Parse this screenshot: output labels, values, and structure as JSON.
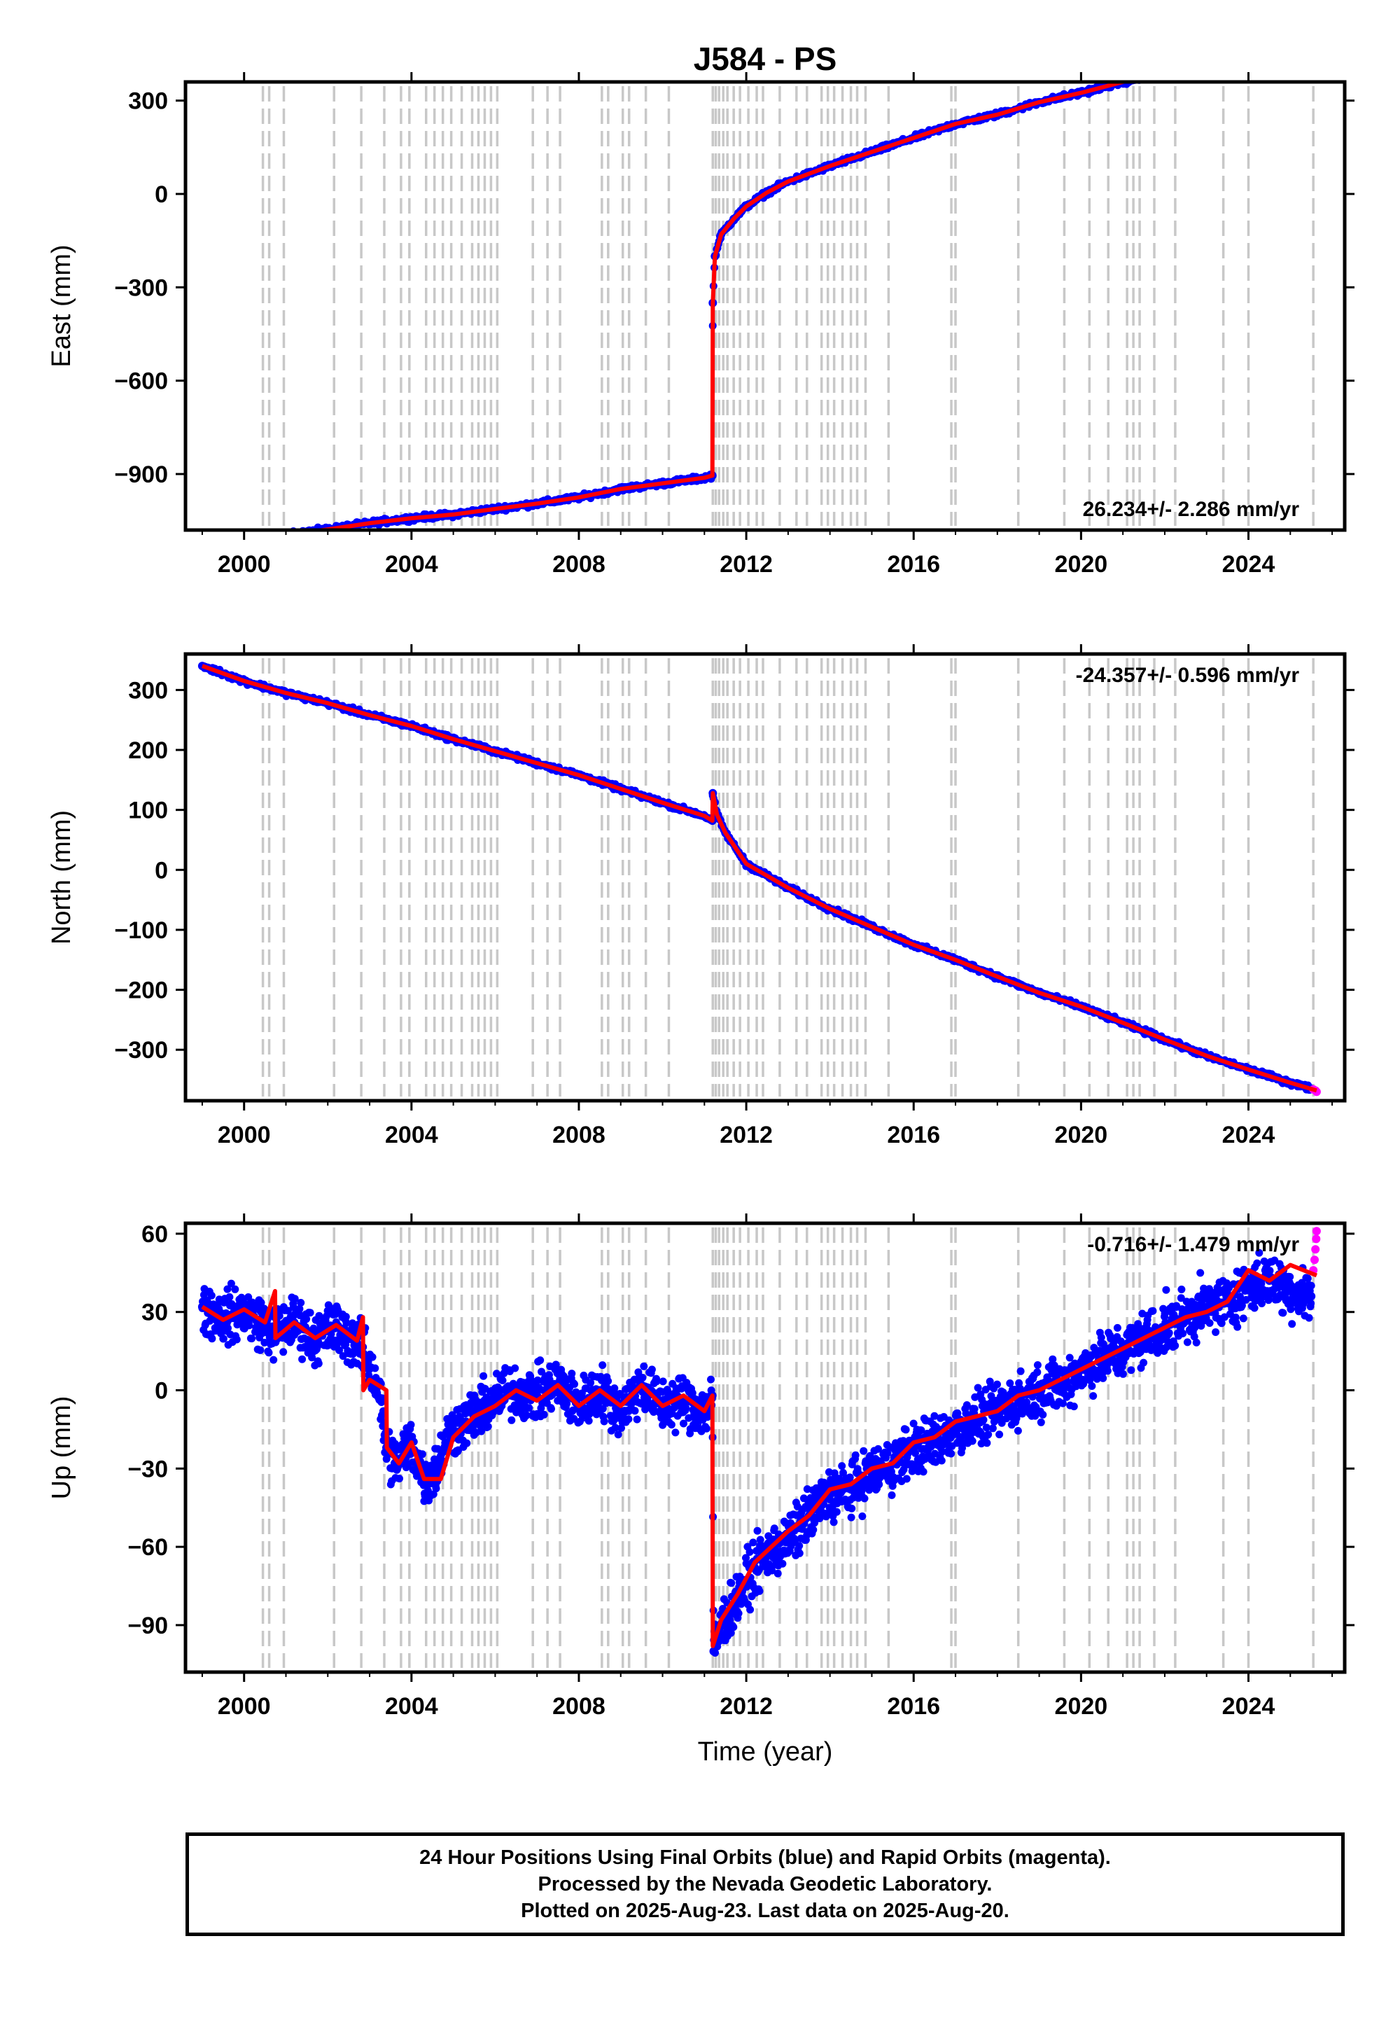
{
  "title": "J584 - PS",
  "xlabel": "Time (year)",
  "footer": {
    "line1": "24 Hour Positions Using Final Orbits (blue) and Rapid Orbits (magenta).",
    "line2": "Processed by the Nevada Geodetic Laboratory.",
    "line3": "Plotted on 2025-Aug-23. Last data on 2025-Aug-20."
  },
  "colors": {
    "final": "#0000ff",
    "rapid": "#ff00ff",
    "model": "#ff0000",
    "event_lines": "#c8c8c8"
  },
  "chart_data": [
    {
      "type": "scatter",
      "ylabel": "East (mm)",
      "rate": "26.234+/- 2.286 mm/yr",
      "rate_position": "bottom-right",
      "xlim": [
        1998.6,
        2026.3
      ],
      "ylim": [
        -1080,
        360
      ],
      "xticks": [
        2000,
        2004,
        2008,
        2012,
        2016,
        2020,
        2024
      ],
      "yticks": [
        300,
        0,
        -300,
        -600,
        -900
      ],
      "xticklabels": [
        "2000",
        "2004",
        "2008",
        "2012",
        "2016",
        "2020",
        "2024"
      ],
      "yticklabels": [
        "300",
        "0",
        "−300",
        "−600",
        "−900"
      ],
      "series": [
        {
          "kind": "final",
          "x": [
            1999.0,
            2000.0,
            2001.0,
            2002.0,
            2003.0,
            2004.0,
            2005.0,
            2006.0,
            2007.0,
            2008.0,
            2009.0,
            2010.0,
            2011.0,
            2011.19,
            2011.2,
            2011.25,
            2011.4,
            2011.7,
            2012.0,
            2012.5,
            2013.0,
            2014.0,
            2015.0,
            2016.0,
            2017.0,
            2018.0,
            2019.0,
            2020.0,
            2021.0,
            2022.0,
            2023.0,
            2024.0,
            2025.0,
            2025.5
          ],
          "y": [
            -1125,
            -1112,
            -1095,
            -1078,
            -1058,
            -1042,
            -1030,
            -1012,
            -995,
            -975,
            -948,
            -930,
            -912,
            -905,
            -350,
            -200,
            -130,
            -80,
            -40,
            5,
            40,
            90,
            135,
            180,
            225,
            255,
            295,
            325,
            360,
            390,
            415,
            445,
            470,
            485
          ]
        },
        {
          "kind": "rapid",
          "x": [
            2025.55,
            2025.6,
            2025.63
          ],
          "y": [
            486,
            490,
            493
          ]
        },
        {
          "kind": "model",
          "x": [
            1999.0,
            2000.0,
            2001.0,
            2002.0,
            2003.0,
            2004.0,
            2005.0,
            2006.0,
            2007.0,
            2008.0,
            2009.0,
            2010.0,
            2011.0,
            2011.19,
            2011.2,
            2011.25,
            2011.4,
            2011.7,
            2012.0,
            2012.5,
            2013.0,
            2014.0,
            2015.0,
            2016.0,
            2017.0,
            2018.0,
            2019.0,
            2020.0,
            2021.0,
            2022.0,
            2023.0,
            2024.0,
            2025.0,
            2025.63
          ],
          "y": [
            -1125,
            -1112,
            -1095,
            -1078,
            -1058,
            -1042,
            -1030,
            -1012,
            -995,
            -975,
            -948,
            -930,
            -912,
            -905,
            -350,
            -200,
            -130,
            -80,
            -40,
            5,
            40,
            90,
            135,
            180,
            225,
            255,
            295,
            325,
            360,
            390,
            415,
            445,
            470,
            490
          ]
        }
      ]
    },
    {
      "type": "scatter",
      "ylabel": "North (mm)",
      "rate": "-24.357+/- 0.596 mm/yr",
      "rate_position": "top-right",
      "xlim": [
        1998.6,
        2026.3
      ],
      "ylim": [
        -385,
        360
      ],
      "xticks": [
        2000,
        2004,
        2008,
        2012,
        2016,
        2020,
        2024
      ],
      "yticks": [
        300,
        200,
        100,
        0,
        -100,
        -200,
        -300
      ],
      "xticklabels": [
        "2000",
        "2004",
        "2008",
        "2012",
        "2016",
        "2020",
        "2024"
      ],
      "yticklabels": [
        "300",
        "200",
        "100",
        "0",
        "−100",
        "−200",
        "−300"
      ],
      "series": [
        {
          "kind": "final",
          "x": [
            1999.0,
            2000.0,
            2001.0,
            2002.0,
            2003.0,
            2004.0,
            2005.0,
            2006.0,
            2007.0,
            2008.0,
            2009.0,
            2010.0,
            2011.0,
            2011.19,
            2011.2,
            2011.3,
            2011.5,
            2012.0,
            2013.0,
            2014.0,
            2015.0,
            2016.0,
            2017.0,
            2018.0,
            2019.0,
            2020.0,
            2021.0,
            2022.0,
            2023.0,
            2024.0,
            2025.0,
            2025.5
          ],
          "y": [
            340,
            315,
            295,
            278,
            258,
            240,
            218,
            198,
            178,
            158,
            135,
            112,
            90,
            82,
            128,
            92,
            62,
            10,
            -30,
            -65,
            -95,
            -125,
            -150,
            -178,
            -205,
            -228,
            -255,
            -283,
            -310,
            -333,
            -355,
            -365
          ]
        },
        {
          "kind": "rapid",
          "x": [
            2025.55,
            2025.6,
            2025.63
          ],
          "y": [
            -366,
            -368,
            -370
          ]
        },
        {
          "kind": "model",
          "x": [
            1999.0,
            2000.0,
            2001.0,
            2002.0,
            2003.0,
            2004.0,
            2005.0,
            2006.0,
            2007.0,
            2008.0,
            2009.0,
            2010.0,
            2011.0,
            2011.19,
            2011.2,
            2011.3,
            2011.5,
            2012.0,
            2013.0,
            2014.0,
            2015.0,
            2016.0,
            2017.0,
            2018.0,
            2019.0,
            2020.0,
            2021.0,
            2022.0,
            2023.0,
            2024.0,
            2025.0,
            2025.63
          ],
          "y": [
            340,
            315,
            295,
            278,
            258,
            240,
            218,
            198,
            178,
            158,
            135,
            112,
            90,
            82,
            128,
            92,
            62,
            10,
            -30,
            -65,
            -95,
            -125,
            -150,
            -178,
            -205,
            -228,
            -255,
            -283,
            -310,
            -333,
            -355,
            -368
          ]
        }
      ]
    },
    {
      "type": "scatter",
      "ylabel": "Up (mm)",
      "rate": "-0.716+/- 1.479 mm/yr",
      "rate_position": "top-right",
      "xlim": [
        1998.6,
        2026.3
      ],
      "ylim": [
        -108,
        64
      ],
      "xticks": [
        2000,
        2004,
        2008,
        2012,
        2016,
        2020,
        2024
      ],
      "yticks": [
        60,
        30,
        0,
        -30,
        -60,
        -90
      ],
      "xticklabels": [
        "2000",
        "2004",
        "2008",
        "2012",
        "2016",
        "2020",
        "2024"
      ],
      "yticklabels": [
        "60",
        "30",
        "0",
        "−30",
        "−60",
        "−90"
      ],
      "series": [
        {
          "kind": "final",
          "x": [
            1999.0,
            1999.5,
            2000.0,
            2000.5,
            2000.7,
            2001.2,
            2001.7,
            2002.2,
            2002.7,
            2002.85,
            2003.2,
            2003.4,
            2003.6,
            2004.0,
            2004.3,
            2004.6,
            2004.9,
            2005.3,
            2005.8,
            2006.3,
            2007.0,
            2007.5,
            2008.0,
            2008.5,
            2009.0,
            2009.5,
            2010.0,
            2010.5,
            2011.0,
            2011.19,
            2011.22,
            2011.4,
            2011.8,
            2012.2,
            2012.6,
            2013.0,
            2013.5,
            2014.0,
            2014.5,
            2015.0,
            2015.5,
            2016.0,
            2016.5,
            2017.0,
            2017.5,
            2018.0,
            2018.5,
            2019.0,
            2019.5,
            2020.0,
            2020.5,
            2021.0,
            2021.5,
            2022.0,
            2022.5,
            2023.0,
            2023.5,
            2024.0,
            2024.5,
            2025.0,
            2025.5
          ],
          "y": [
            32,
            28,
            30,
            25,
            22,
            26,
            20,
            24,
            18,
            14,
            2,
            -22,
            -28,
            -20,
            -34,
            -30,
            -16,
            -12,
            -6,
            0,
            -2,
            2,
            -6,
            0,
            -8,
            2,
            -6,
            -4,
            -8,
            -2,
            -100,
            -90,
            -80,
            -68,
            -62,
            -58,
            -48,
            -40,
            -38,
            -32,
            -28,
            -22,
            -20,
            -15,
            -12,
            -8,
            -4,
            0,
            2,
            8,
            12,
            15,
            20,
            24,
            28,
            32,
            34,
            40,
            42,
            38,
            36
          ]
        },
        {
          "kind": "rapid",
          "x": [
            2025.55,
            2025.58,
            2025.6,
            2025.62,
            2025.63
          ],
          "y": [
            46,
            50,
            54,
            58,
            61
          ]
        },
        {
          "kind": "model",
          "x": [
            1999.0,
            1999.5,
            2000.0,
            2000.5,
            2000.74,
            2000.75,
            2001.2,
            2001.7,
            2002.2,
            2002.7,
            2002.84,
            2002.85,
            2003.0,
            2003.4,
            2003.41,
            2003.7,
            2004.0,
            2004.3,
            2004.7,
            2005.0,
            2005.5,
            2006.0,
            2006.5,
            2007.0,
            2007.5,
            2008.0,
            2008.5,
            2009.0,
            2009.5,
            2010.0,
            2010.5,
            2011.0,
            2011.19,
            2011.2,
            2011.4,
            2011.8,
            2012.2,
            2012.6,
            2013.0,
            2013.5,
            2014.0,
            2014.5,
            2015.0,
            2015.5,
            2016.0,
            2016.5,
            2017.0,
            2017.5,
            2018.0,
            2018.5,
            2019.0,
            2019.5,
            2020.0,
            2020.5,
            2021.0,
            2021.5,
            2022.0,
            2022.5,
            2023.0,
            2023.5,
            2024.0,
            2024.5,
            2025.0,
            2025.63
          ],
          "y": [
            32,
            27,
            31,
            26,
            38,
            20,
            26,
            20,
            25,
            19,
            28,
            0,
            4,
            0,
            -22,
            -28,
            -20,
            -34,
            -34,
            -18,
            -10,
            -6,
            0,
            -4,
            2,
            -6,
            0,
            -6,
            2,
            -6,
            -2,
            -8,
            -2,
            -98,
            -88,
            -78,
            -66,
            -60,
            -54,
            -48,
            -38,
            -36,
            -30,
            -28,
            -20,
            -18,
            -12,
            -10,
            -8,
            -2,
            0,
            4,
            8,
            12,
            16,
            20,
            24,
            28,
            30,
            34,
            46,
            42,
            48,
            44
          ]
        }
      ]
    }
  ],
  "event_lines": [
    2000.45,
    2000.6,
    2000.95,
    2002.15,
    2002.8,
    2003.35,
    2003.75,
    2003.95,
    2004.35,
    2004.55,
    2004.75,
    2004.95,
    2005.2,
    2005.45,
    2005.6,
    2005.75,
    2005.9,
    2006.05,
    2006.9,
    2007.25,
    2007.55,
    2008.55,
    2008.7,
    2009.05,
    2009.2,
    2009.6,
    2010.15,
    2011.2,
    2011.27,
    2011.35,
    2011.45,
    2011.55,
    2011.7,
    2011.85,
    2012.05,
    2012.25,
    2012.4,
    2012.8,
    2013.2,
    2013.45,
    2013.8,
    2013.95,
    2014.1,
    2014.3,
    2014.5,
    2014.65,
    2014.85,
    2015.4,
    2016.9,
    2017.0,
    2018.5,
    2019.6,
    2020.2,
    2020.65,
    2021.1,
    2021.25,
    2021.4,
    2021.75,
    2022.25,
    2023.4,
    2024.0,
    2025.55
  ]
}
